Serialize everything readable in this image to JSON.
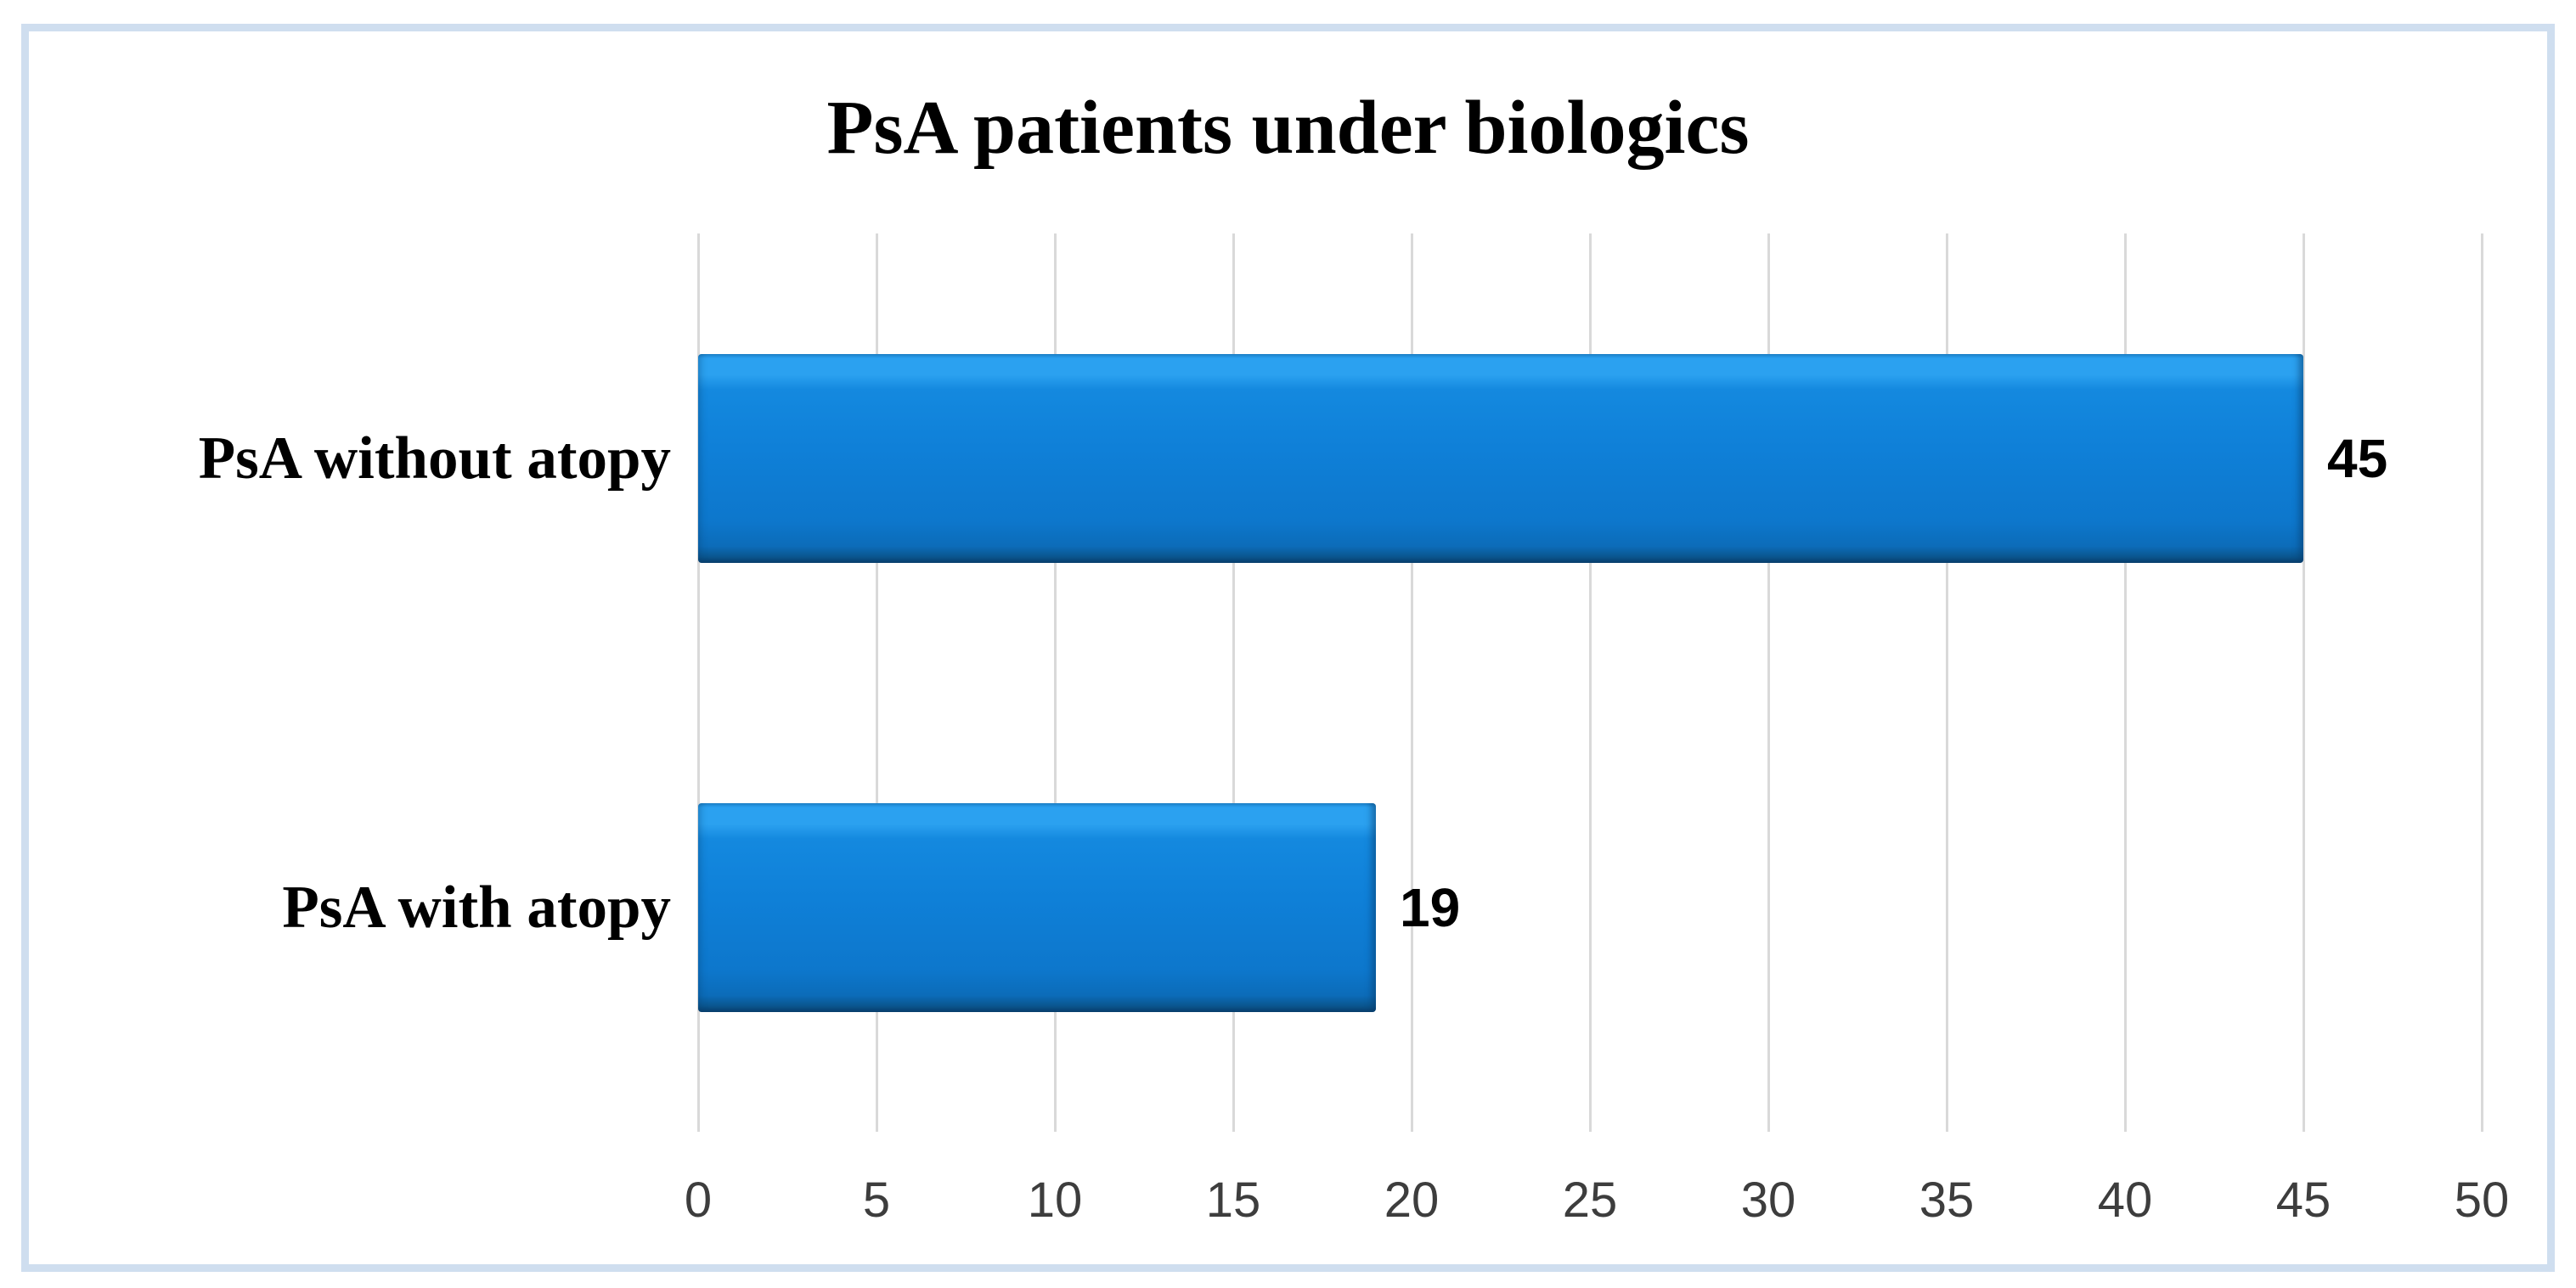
{
  "figure": {
    "background": "#ffffff",
    "frame_border_color": "#cfdeef"
  },
  "chart_data": {
    "type": "bar",
    "orientation": "horizontal",
    "title": "PsA patients under biologics",
    "categories": [
      "PsA without atopy",
      "PsA with atopy"
    ],
    "values": [
      45,
      19
    ],
    "data_labels": [
      "45",
      "19"
    ],
    "xlabel": "",
    "ylabel": "",
    "xlim": [
      0,
      50
    ],
    "xticks": [
      0,
      5,
      10,
      15,
      20,
      25,
      30,
      35,
      40,
      45,
      50
    ],
    "grid": "vertical-gridlines-only",
    "legend": "none",
    "colors": {
      "bar_main": "#0f80d8",
      "bar_highlight": "#2ba1f0",
      "bar_edge_dark": "#0a3f6d",
      "gridline": "#d9d9d9",
      "tick_label": "#3d3d3d",
      "title_text": "#000000",
      "category_label": "#000000",
      "value_label": "#000000"
    }
  }
}
